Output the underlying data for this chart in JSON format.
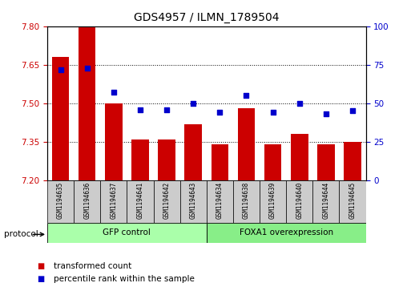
{
  "title": "GDS4957 / ILMN_1789504",
  "samples": [
    "GSM1194635",
    "GSM1194636",
    "GSM1194637",
    "GSM1194641",
    "GSM1194642",
    "GSM1194643",
    "GSM1194634",
    "GSM1194638",
    "GSM1194639",
    "GSM1194640",
    "GSM1194644",
    "GSM1194645"
  ],
  "transformed_count": [
    7.68,
    7.8,
    7.5,
    7.36,
    7.36,
    7.42,
    7.34,
    7.48,
    7.34,
    7.38,
    7.34,
    7.35
  ],
  "percentile_rank": [
    72,
    73,
    57,
    46,
    46,
    50,
    44,
    55,
    44,
    50,
    43,
    45
  ],
  "ylim_left": [
    7.2,
    7.8
  ],
  "ylim_right": [
    0,
    100
  ],
  "yticks_left": [
    7.2,
    7.35,
    7.5,
    7.65,
    7.8
  ],
  "yticks_right": [
    0,
    25,
    50,
    75,
    100
  ],
  "bar_color": "#cc0000",
  "dot_color": "#0000cc",
  "background_color": "#ffffff",
  "tick_color_left": "#cc0000",
  "tick_color_right": "#0000cc",
  "legend_labels": [
    "transformed count",
    "percentile rank within the sample"
  ],
  "protocol_label": "protocol",
  "gfp_label": "GFP control",
  "foxa_label": "FOXA1 overexpression",
  "gfp_color": "#aaffaa",
  "foxa_color": "#88ee88",
  "label_bg_color": "#cccccc",
  "gfp_samples": 6,
  "foxa_samples": 6
}
